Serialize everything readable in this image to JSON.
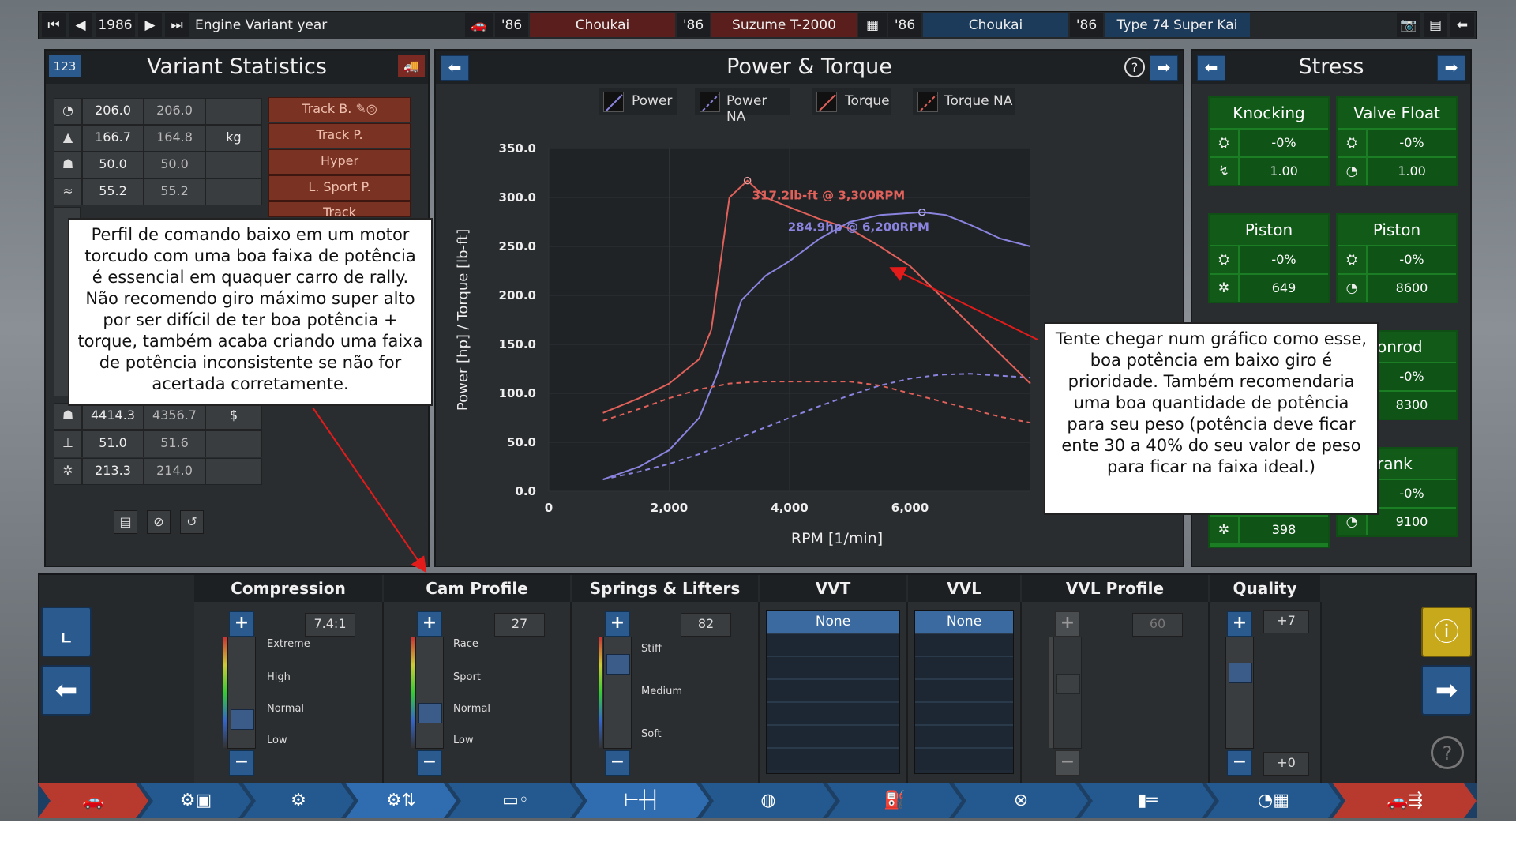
{
  "topbar": {
    "year": "1986",
    "variant_label": "Engine Variant year",
    "slots": [
      {
        "year": "'86",
        "name": "Choukai"
      },
      {
        "year": "'86",
        "name": "Suzume T-2000"
      },
      {
        "year": "'86",
        "name": "Choukai"
      },
      {
        "year": "'86",
        "name": "Type 74 Super Kai"
      }
    ]
  },
  "variant_stats": {
    "badge": "123",
    "title": "Variant Statistics",
    "rows_top": [
      {
        "a": "206.0",
        "b": "206.0",
        "unit": ""
      },
      {
        "a": "166.7",
        "b": "164.8",
        "unit": "kg"
      },
      {
        "a": "50.0",
        "b": "50.0",
        "unit": ""
      },
      {
        "a": "55.2",
        "b": "55.2",
        "unit": ""
      }
    ],
    "rows_bottom": [
      {
        "a": "4414.3",
        "b": "4356.7",
        "unit": "$"
      },
      {
        "a": "51.0",
        "b": "51.6",
        "unit": ""
      },
      {
        "a": "213.3",
        "b": "214.0",
        "unit": ""
      }
    ],
    "tabs": [
      "Track B.",
      "Track P.",
      "Hyper",
      "L. Sport P.",
      "Track"
    ]
  },
  "chart_panel": {
    "title": "Power & Torque",
    "legend": [
      "Power",
      "Power NA",
      "Torque",
      "Torque NA"
    ],
    "annotations": [
      "317.2lb-ft @ 3,300RPM",
      "284.9hp @ 6,200RPM"
    ]
  },
  "chart_data": {
    "type": "line",
    "xlabel": "RPM [1/min]",
    "ylabel": "Power [hp] / Torque [lb-ft]",
    "xlim": [
      0,
      8000
    ],
    "ylim": [
      0,
      350
    ],
    "x_ticks": [
      "0",
      "2,000",
      "4,000",
      "6,000"
    ],
    "y_ticks": [
      "0.0",
      "50.0",
      "100.0",
      "150.0",
      "200.0",
      "250.0",
      "300.0",
      "350.0"
    ],
    "series": [
      {
        "name": "Power",
        "color": "#8a84e0",
        "dashed": false,
        "x": [
          900,
          1500,
          2000,
          2500,
          2800,
          3200,
          3600,
          4000,
          4500,
          5000,
          5500,
          6000,
          6200,
          6600,
          7000,
          7500,
          8000
        ],
        "y": [
          12,
          25,
          42,
          75,
          120,
          195,
          220,
          235,
          258,
          275,
          282,
          284,
          284.9,
          282,
          272,
          258,
          250
        ]
      },
      {
        "name": "Power NA",
        "color": "#8a84e0",
        "dashed": true,
        "x": [
          900,
          1500,
          2000,
          2500,
          3000,
          3500,
          4000,
          4500,
          5000,
          5500,
          6000,
          6500,
          7000,
          7500,
          8000
        ],
        "y": [
          12,
          20,
          28,
          38,
          50,
          63,
          75,
          87,
          98,
          108,
          115,
          119,
          120,
          118,
          116
        ]
      },
      {
        "name": "Torque",
        "color": "#e0605a",
        "dashed": false,
        "x": [
          900,
          1500,
          2000,
          2500,
          2700,
          3000,
          3300,
          3600,
          4000,
          4500,
          5000,
          5500,
          6000,
          6500,
          7000,
          7500,
          8000
        ],
        "y": [
          80,
          95,
          110,
          135,
          165,
          300,
          317.2,
          300,
          290,
          278,
          268,
          250,
          230,
          200,
          170,
          140,
          110
        ]
      },
      {
        "name": "Torque NA",
        "color": "#e0605a",
        "dashed": true,
        "x": [
          900,
          1500,
          2000,
          2500,
          3000,
          3500,
          4000,
          4500,
          5000,
          5500,
          6000,
          6500,
          7000,
          7500,
          8000
        ],
        "y": [
          72,
          84,
          95,
          104,
          110,
          112,
          112,
          112,
          112,
          108,
          100,
          92,
          84,
          76,
          70
        ]
      }
    ]
  },
  "stress": {
    "title": "Stress",
    "boxes": [
      {
        "title": "Knocking",
        "v1": "-0%",
        "v2": "1.00"
      },
      {
        "title": "Valve Float",
        "v1": "-0%",
        "v2": "1.00"
      },
      {
        "title": "Piston",
        "v1": "-0%",
        "v2": "649"
      },
      {
        "title": "Piston",
        "v1": "-0%",
        "v2": "8600"
      },
      {
        "title": "onrod",
        "v1": "-0%",
        "v2": "8300"
      },
      {
        "title": "rank",
        "v1": "-0%",
        "v2": "9100"
      }
    ],
    "extra_value": "398"
  },
  "tuning": {
    "compression": {
      "label": "Compression",
      "value": "7.4:1",
      "levels": [
        "Extreme",
        "High",
        "Normal",
        "Low"
      ],
      "position": 0.2
    },
    "cam_profile": {
      "label": "Cam Profile",
      "value": "27",
      "levels": [
        "Race",
        "Sport",
        "Normal",
        "Low"
      ],
      "position": 0.27
    },
    "springs": {
      "label": "Springs & Lifters",
      "value": "82",
      "levels": [
        "Stiff",
        "Medium",
        "Soft"
      ],
      "position": 0.82
    },
    "vvt": {
      "label": "VVT",
      "selected": "None"
    },
    "vvl": {
      "label": "VVL",
      "selected": "None"
    },
    "vvl_profile": {
      "label": "VVL Profile",
      "value": "60"
    },
    "quality": {
      "label": "Quality",
      "top": "+7",
      "bottom": "+0"
    }
  },
  "notes": {
    "left": "Perfil de comando baixo em um motor torcudo com uma boa faixa de potência é essencial em quaquer carro de rally. Não recomendo giro máximo super alto por ser difícil de ter boa potência + torque, também acaba criando uma faixa de potência inconsistente se não for acertada corretamente.",
    "right": "Tente chegar num gráfico como esse, boa potência em baixo giro é prioridade. Também recomendaria uma boa quantidade de potência para seu peso (potência deve ficar ente 30 a 40% do seu valor de peso para ficar na faixa ideal.)"
  },
  "colors": {
    "accent": "#2b5a8e",
    "stress_green": "#1b7e24",
    "warning_yellow": "#c9a91c",
    "tab_red": "#7a3223"
  }
}
